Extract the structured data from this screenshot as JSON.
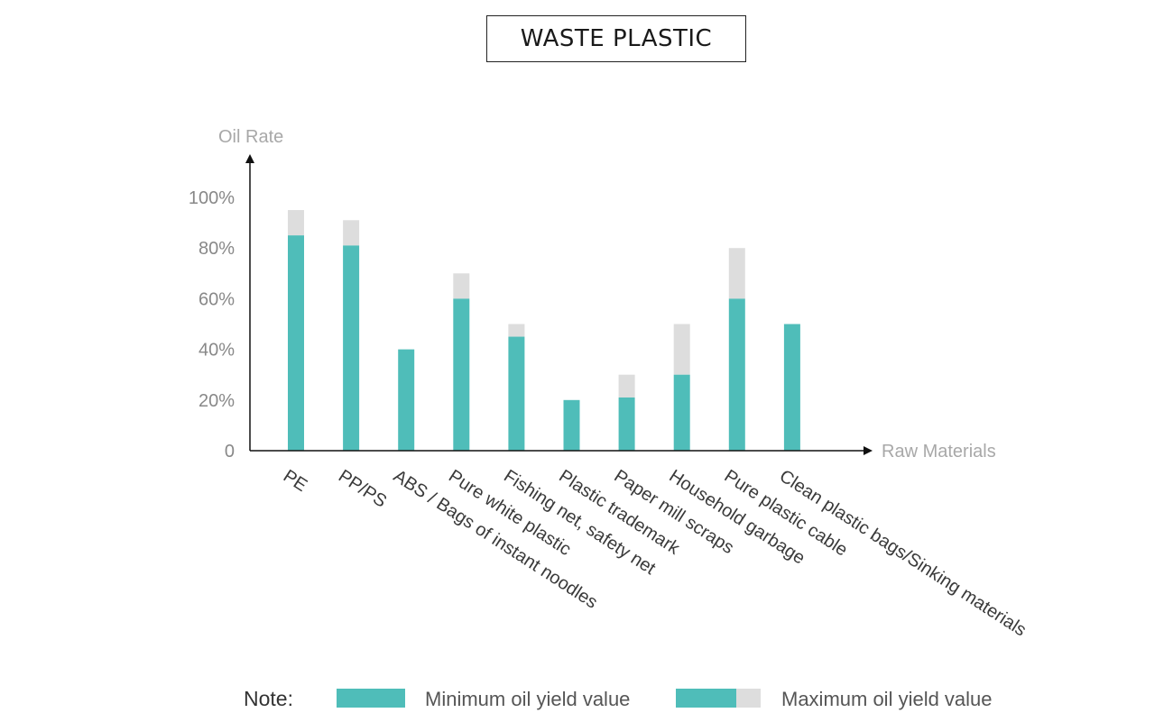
{
  "chart_data": {
    "type": "bar",
    "title": "WASTE PLASTIC",
    "ylabel": "Oil Rate",
    "xlabel": "Raw Materials",
    "ylim": [
      0,
      100
    ],
    "yticks": [
      {
        "value": 0,
        "label": "0"
      },
      {
        "value": 20,
        "label": "20%"
      },
      {
        "value": 40,
        "label": "40%"
      },
      {
        "value": 60,
        "label": "60%"
      },
      {
        "value": 80,
        "label": "80%"
      },
      {
        "value": 100,
        "label": "100%"
      }
    ],
    "categories": [
      "PE",
      "PP/PS",
      "ABS / Bags of instant noodles",
      "Pure white plastic",
      "Fishing net, safety net",
      "Plastic trademark",
      "Paper mill scraps",
      "Household garbage",
      "Pure plastic cable",
      "Clean plastic bags/Sinking materials"
    ],
    "series": [
      {
        "name": "Minimum oil yield value",
        "values": [
          85,
          81,
          40,
          60,
          45,
          20,
          21,
          30,
          60,
          50
        ]
      },
      {
        "name": "Maximum oil yield value",
        "values": [
          95,
          91,
          40,
          70,
          50,
          20,
          30,
          50,
          80,
          50
        ]
      }
    ],
    "grid": false,
    "legend_position": "bottom"
  },
  "legend": {
    "note": "Note:",
    "min_label": "Minimum oil yield value",
    "max_label": "Maximum oil yield value"
  },
  "colors": {
    "min_bar": "#4fbdb9",
    "max_bar": "#dddddd",
    "axis": "#111111"
  }
}
